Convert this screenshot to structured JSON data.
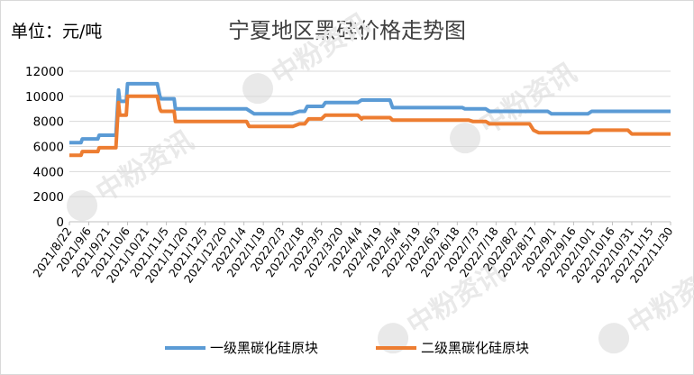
{
  "header": {
    "unit_label": "单位：元/吨",
    "title": "宁夏地区黑硅价格走势图"
  },
  "watermark": {
    "text": "中粉资讯",
    "color": "#e9e9e9"
  },
  "chart_data": {
    "type": "line",
    "title": "宁夏地区黑硅价格走势图",
    "ylabel": "单位：元/吨",
    "ylim": [
      0,
      12000
    ],
    "yticks": [
      0,
      2000,
      4000,
      6000,
      8000,
      10000,
      12000
    ],
    "grid": true,
    "legend_position": "bottom",
    "x_start": "2021/8/22",
    "x_end": "2022/11/30",
    "x_tick_labels": [
      "2021/8/22",
      "2021/9/6",
      "2021/9/21",
      "2021/10/6",
      "2021/10/21",
      "2021/11/5",
      "2021/11/20",
      "2021/12/5",
      "2021/12/20",
      "2022/1/4",
      "2022/1/19",
      "2022/2/3",
      "2022/2/18",
      "2022/3/5",
      "2022/3/20",
      "2022/4/4",
      "2022/4/19",
      "2022/5/4",
      "2022/5/19",
      "2022/6/3",
      "2022/6/18",
      "2022/7/3",
      "2022/7/18",
      "2022/8/2",
      "2022/8/17",
      "2022/9/1",
      "2022/9/16",
      "2022/10/1",
      "2022/10/16",
      "2022/10/31",
      "2022/11/15",
      "2022/11/30"
    ],
    "series": [
      {
        "name": "一级黑碳化硅原块",
        "color": "#5b9bd5",
        "points": [
          [
            "2021/8/22",
            6300
          ],
          [
            "2021/8/31",
            6300
          ],
          [
            "2021/9/1",
            6600
          ],
          [
            "2021/9/13",
            6600
          ],
          [
            "2021/9/14",
            6900
          ],
          [
            "2021/9/27",
            6900
          ],
          [
            "2021/9/29",
            10500
          ],
          [
            "2021/9/30",
            9600
          ],
          [
            "2021/10/5",
            9600
          ],
          [
            "2021/10/6",
            11000
          ],
          [
            "2021/10/29",
            11000
          ],
          [
            "2021/10/31",
            10000
          ],
          [
            "2021/11/1",
            9800
          ],
          [
            "2021/11/11",
            9800
          ],
          [
            "2021/11/12",
            9000
          ],
          [
            "2022/1/6",
            9000
          ],
          [
            "2022/1/12",
            8600
          ],
          [
            "2022/2/10",
            8600
          ],
          [
            "2022/2/16",
            8800
          ],
          [
            "2022/2/20",
            8800
          ],
          [
            "2022/2/22",
            9200
          ],
          [
            "2022/3/6",
            9200
          ],
          [
            "2022/3/8",
            9500
          ],
          [
            "2022/4/2",
            9500
          ],
          [
            "2022/4/5",
            9700
          ],
          [
            "2022/4/27",
            9700
          ],
          [
            "2022/4/29",
            9100
          ],
          [
            "2022/6/22",
            9100
          ],
          [
            "2022/6/24",
            9000
          ],
          [
            "2022/7/10",
            9000
          ],
          [
            "2022/7/13",
            8800
          ],
          [
            "2022/8/27",
            8800
          ],
          [
            "2022/8/30",
            8600
          ],
          [
            "2022/9/27",
            8600
          ],
          [
            "2022/9/30",
            8800
          ],
          [
            "2022/11/30",
            8800
          ]
        ]
      },
      {
        "name": "二级黑碳化硅原块",
        "color": "#ed7d31",
        "points": [
          [
            "2021/8/22",
            5300
          ],
          [
            "2021/8/31",
            5300
          ],
          [
            "2021/9/1",
            5600
          ],
          [
            "2021/9/13",
            5600
          ],
          [
            "2021/9/14",
            5900
          ],
          [
            "2021/9/27",
            5900
          ],
          [
            "2021/9/29",
            9500
          ],
          [
            "2021/9/30",
            8500
          ],
          [
            "2021/10/5",
            8500
          ],
          [
            "2021/10/6",
            10000
          ],
          [
            "2021/10/29",
            10000
          ],
          [
            "2021/10/31",
            9000
          ],
          [
            "2021/11/1",
            8800
          ],
          [
            "2021/11/11",
            8800
          ],
          [
            "2021/11/12",
            8000
          ],
          [
            "2022/1/6",
            8000
          ],
          [
            "2022/1/8",
            7600
          ],
          [
            "2022/2/11",
            7600
          ],
          [
            "2022/2/16",
            7800
          ],
          [
            "2022/2/20",
            7800
          ],
          [
            "2022/2/23",
            8200
          ],
          [
            "2022/3/5",
            8200
          ],
          [
            "2022/3/8",
            8500
          ],
          [
            "2022/4/2",
            8500
          ],
          [
            "2022/4/5",
            8200
          ],
          [
            "2022/4/6",
            8300
          ],
          [
            "2022/4/27",
            8300
          ],
          [
            "2022/4/29",
            8100
          ],
          [
            "2022/6/27",
            8100
          ],
          [
            "2022/6/30",
            8000
          ],
          [
            "2022/7/10",
            8000
          ],
          [
            "2022/7/13",
            7800
          ],
          [
            "2022/8/13",
            7800
          ],
          [
            "2022/8/16",
            7300
          ],
          [
            "2022/8/20",
            7100
          ],
          [
            "2022/9/28",
            7100
          ],
          [
            "2022/10/1",
            7300
          ],
          [
            "2022/10/28",
            7300
          ],
          [
            "2022/10/31",
            7000
          ],
          [
            "2022/11/30",
            7000
          ]
        ]
      }
    ]
  }
}
